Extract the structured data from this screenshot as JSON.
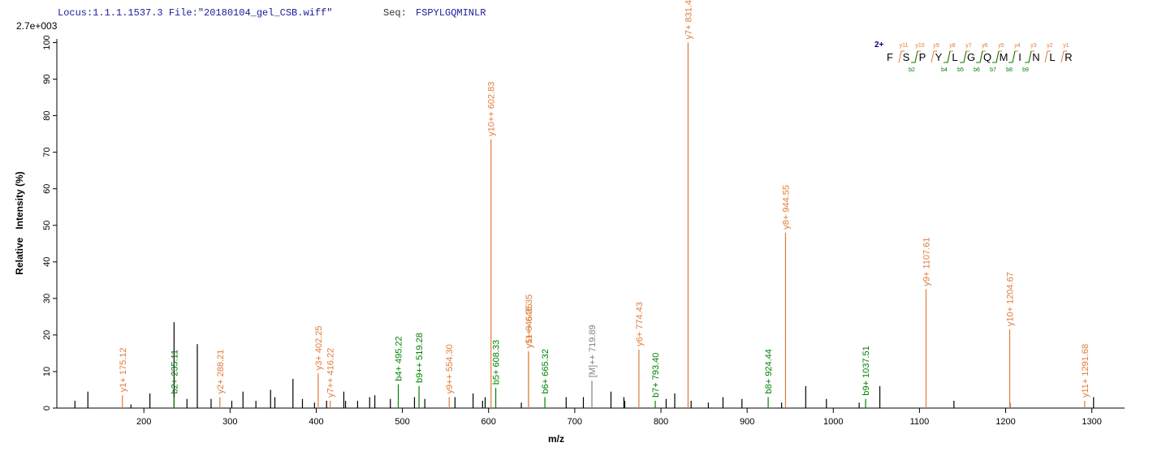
{
  "chart_data": {
    "type": "spectrum",
    "header": "Locus:1.1.1.1537.3 File:\"20180104_gel_CSB.wiff\"",
    "seq_label": "Seq:",
    "sequence": "FSPYLGQMINLR",
    "scale_label": "2.7e+003",
    "xlabel": "m/z",
    "ylabel": "Relative   Intensity (%)",
    "xlim": [
      99,
      1338
    ],
    "ylim": [
      0,
      101
    ],
    "xticks": [
      200,
      300,
      400,
      500,
      600,
      700,
      800,
      900,
      1000,
      1100,
      1200,
      1300
    ],
    "yticks": [
      0,
      10,
      20,
      30,
      40,
      50,
      60,
      70,
      80,
      90,
      100
    ],
    "series": [
      {
        "color": "#000000",
        "x": [
          120,
          135,
          185,
          207,
          235,
          250,
          262,
          278,
          302,
          315,
          330,
          347,
          352,
          373,
          384,
          398,
          412,
          432,
          434,
          448,
          462,
          468,
          486,
          514,
          526,
          561,
          582,
          593,
          596,
          638,
          690,
          710,
          742,
          757,
          758,
          806,
          816,
          835,
          855,
          872,
          894,
          940,
          968,
          992,
          1030,
          1054,
          1140,
          1205,
          1302
        ],
        "values": [
          2,
          4.5,
          1,
          4,
          23.5,
          2.5,
          17.5,
          2.5,
          2,
          4.5,
          2,
          5,
          3,
          8,
          2.5,
          1.5,
          2,
          4.5,
          2,
          2,
          3,
          3.5,
          2.5,
          3,
          2.5,
          3,
          4,
          2,
          3,
          1.5,
          3,
          3,
          4.5,
          3,
          2,
          2.5,
          4,
          2,
          1.5,
          3,
          2.5,
          1.5,
          6,
          2.5,
          1.5,
          6,
          2,
          1.5,
          3
        ]
      },
      {
        "color": "#e07b39",
        "x": [
          175.12,
          288.21,
          402.25,
          416.22,
          554.3,
          602.83,
          646.35,
          646.35,
          774.43,
          831.46,
          944.55,
          1107.61,
          1204.67,
          1291.68
        ],
        "values": [
          3.5,
          3,
          9.5,
          2,
          3,
          73.5,
          15.5,
          15.5,
          16,
          100,
          48,
          32.5,
          21.5,
          2
        ],
        "labels": [
          "y1+ 175.12",
          "y2+ 288.21",
          "y3+ 402.25",
          "y7++ 416.22",
          "y9++ 554.30",
          "y10++ 602.83",
          "y5+ 646.35",
          "y11++ 646.35",
          "y6+ 774.43",
          "y7+ 831.46",
          "y8+ 944.55",
          "y9+ 1107.61",
          "y10+ 1204.67",
          "y11+ 1291.68"
        ]
      },
      {
        "color": "#008000",
        "x": [
          235.11,
          495.22,
          519.28,
          608.33,
          665.32,
          793.4,
          924.44,
          1037.51
        ],
        "values": [
          3,
          6.5,
          6,
          5.5,
          3,
          2,
          3,
          2.5
        ],
        "labels": [
          "b2+ 235.11",
          "b4+ 495.22",
          "b9++ 519.28",
          "b5+ 608.33",
          "b6+ 665.32",
          "b7+ 793.40",
          "b8+ 924.44",
          "b9+ 1037.51"
        ]
      },
      {
        "color": "#808080",
        "x": [
          719.89
        ],
        "values": [
          7.5
        ],
        "labels": [
          "[M]++ 719.89"
        ]
      }
    ],
    "sequence_map": {
      "charge": "2+",
      "residues": [
        "F",
        "S",
        "P",
        "Y",
        "L",
        "G",
        "Q",
        "M",
        "I",
        "N",
        "L",
        "R"
      ],
      "y_labels": [
        "y11",
        "y10",
        "y9",
        "y8",
        "y7",
        "y6",
        "y5",
        "y4",
        "y3",
        "y2",
        "y1"
      ],
      "b_labels": [
        "b2",
        "b4",
        "b5",
        "b6",
        "b7",
        "b8",
        "b9"
      ],
      "b_after": [
        2,
        4,
        5,
        6,
        7,
        8,
        9
      ]
    }
  }
}
